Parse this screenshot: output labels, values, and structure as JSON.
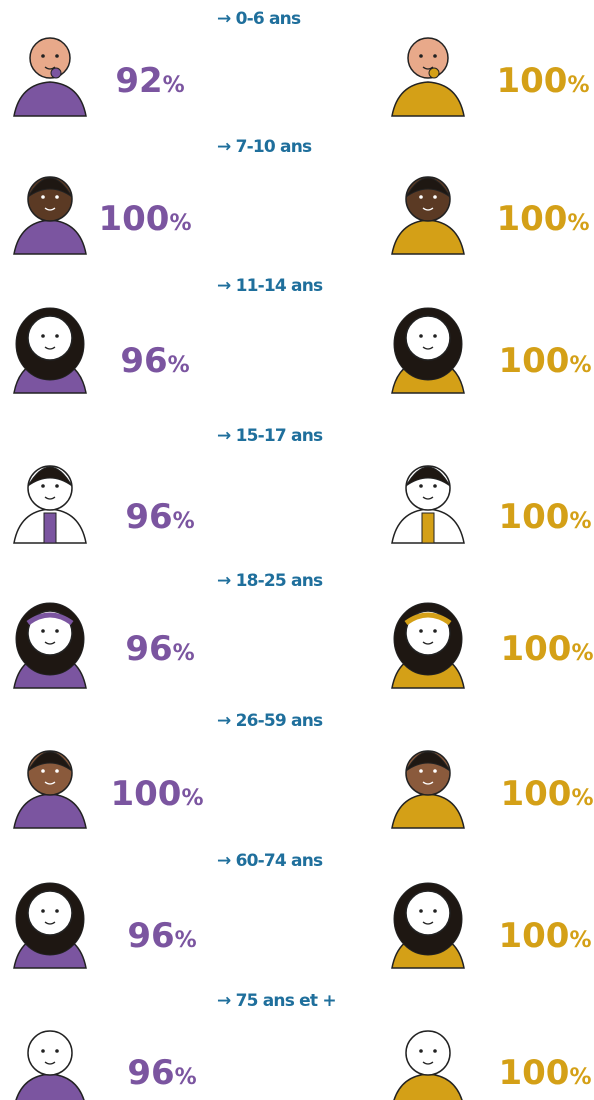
{
  "unit": "%",
  "groups": [
    {
      "label": "→ 0-6 ans",
      "left": 92,
      "right": 100
    },
    {
      "label": "→ 7-10 ans",
      "left": 100,
      "right": 100
    },
    {
      "label": "→ 11-14 ans",
      "left": 96,
      "right": 100
    },
    {
      "label": "→ 15-17 ans",
      "left": 96,
      "right": 100
    },
    {
      "label": "→ 18-25 ans",
      "left": 96,
      "right": 100
    },
    {
      "label": "→ 26-59 ans",
      "left": 100,
      "right": 100
    },
    {
      "label": "→ 60-74 ans",
      "left": 96,
      "right": 100
    },
    {
      "label": "→ 75 ans et +",
      "left": 96,
      "right": 100
    }
  ]
}
